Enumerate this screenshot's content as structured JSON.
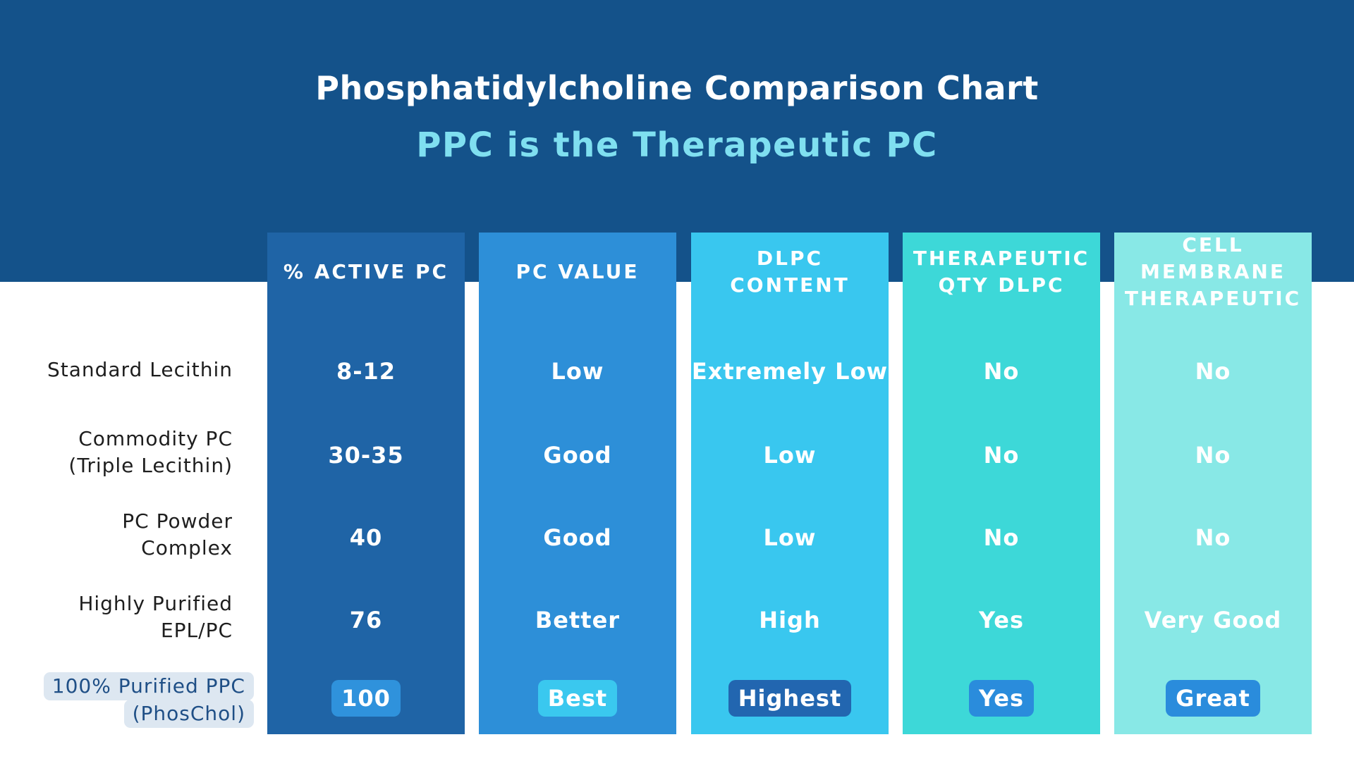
{
  "title": "Phosphatidylcholine Comparison Chart",
  "subtitle": "PPC is the Therapeutic PC",
  "columns": [
    {
      "header": "% ACTIVE PC",
      "color": "#1f64a6",
      "values": [
        "8-12",
        "30-35",
        "40",
        "76",
        "100"
      ],
      "pill_color": "#2f92dc"
    },
    {
      "header": "PC VALUE",
      "color": "#2d8fd8",
      "values": [
        "Low",
        "Good",
        "Good",
        "Better",
        "Best"
      ],
      "pill_color": "#3ac8ef"
    },
    {
      "header": "DLPC CONTENT",
      "color": "#39c7ef",
      "values": [
        "Extremely Low",
        "Low",
        "Low",
        "High",
        "Highest"
      ],
      "pill_color": "#2266b0"
    },
    {
      "header": "THERAPEUTIC QTY DLPC",
      "color": "#3dd8d8",
      "values": [
        "No",
        "No",
        "No",
        "Yes",
        "Yes"
      ],
      "pill_color": "#2a8cdc"
    },
    {
      "header": "CELL MEMBRANE THERAPEUTIC",
      "color": "#88e8e6",
      "values": [
        "No",
        "No",
        "No",
        "Very Good",
        "Great"
      ],
      "pill_color": "#2a8cdc"
    }
  ],
  "rows": [
    {
      "line1": "Standard Lecithin",
      "line2": ""
    },
    {
      "line1": "Commodity PC",
      "line2": "(Triple Lecithin)"
    },
    {
      "line1": "PC Powder",
      "line2": "Complex"
    },
    {
      "line1": "Highly Purified",
      "line2": "EPL/PC"
    },
    {
      "line1": "100% Purified PPC",
      "line2": "(PhosChol)"
    }
  ],
  "colors": {
    "banner": "#14528a",
    "title": "#ffffff",
    "subtitle": "#7fdff0",
    "highlight_label_bg": "#dde7f1",
    "highlight_label_text": "#1f4f86"
  }
}
